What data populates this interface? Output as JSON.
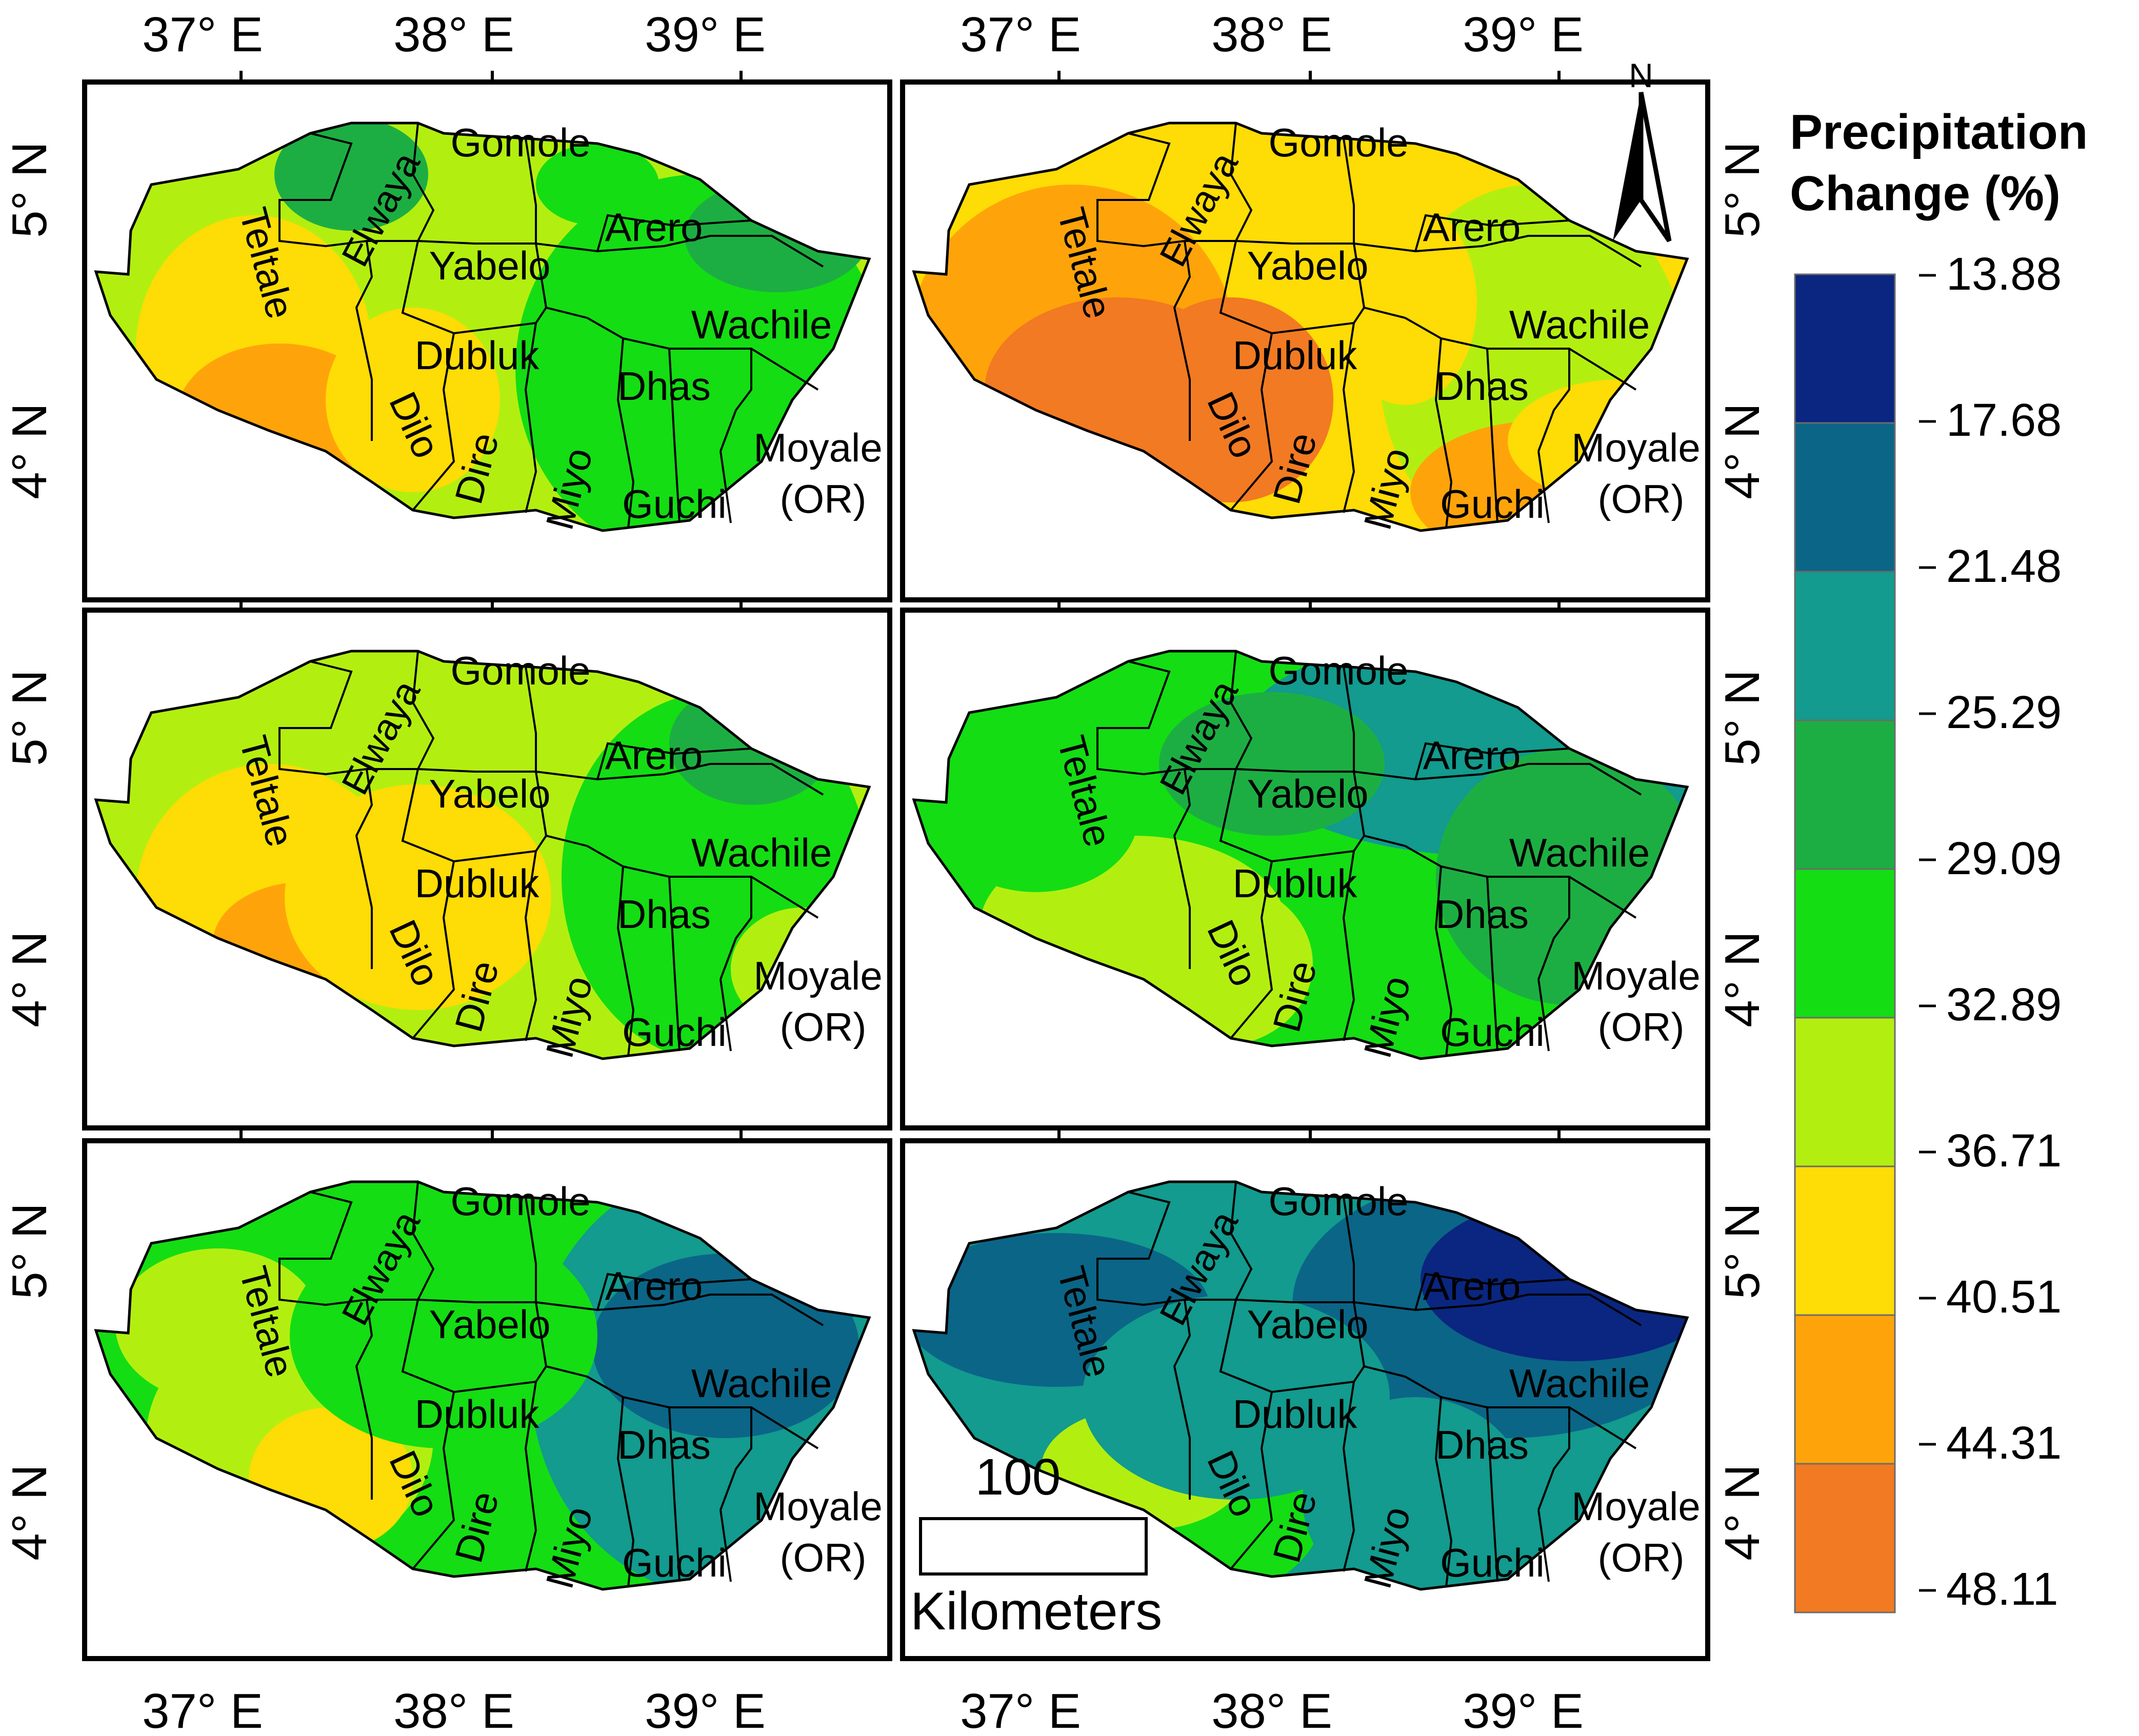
{
  "axis_labels": {
    "longitude": [
      "37° E",
      "38° E",
      "39° E"
    ],
    "latitude": [
      "5° N",
      "4° N"
    ]
  },
  "district_names": [
    "Gomole",
    "Elwaya",
    "Teltale",
    "Yabelo",
    "Arero",
    "Wachile",
    "Dubluk",
    "Dilo",
    "Dhas",
    "Dire",
    "Miyo",
    "Guchi",
    "Moyale",
    "(OR)"
  ],
  "north_arrow_label": "N",
  "scale_bar": {
    "value": "100",
    "unit": "Kilometers"
  },
  "legend": {
    "title_line1": "Precipitation",
    "title_line2": "Change (%)",
    "classes": [
      {
        "label": "13.88",
        "color": "#0a2680"
      },
      {
        "label": "17.68",
        "color": "#0b6587"
      },
      {
        "label": "21.48",
        "color": "#129b8e"
      },
      {
        "label": "25.29",
        "color": "#1dae43"
      },
      {
        "label": "29.09",
        "color": "#14dd14"
      },
      {
        "label": "32.89",
        "color": "#b2ef10"
      },
      {
        "label": "36.71",
        "color": "#fedc05"
      },
      {
        "label": "40.51",
        "color": "#fea40a"
      },
      {
        "label": "44.31",
        "color": "#f27a22"
      },
      {
        "label": "48.11",
        "color": ""
      }
    ]
  },
  "panels": [
    {
      "id": "top-left",
      "palette": [
        "#b2ef10",
        "#fedc05",
        "#fea40a",
        "#14dd14",
        "#1dae43"
      ]
    },
    {
      "id": "top-right",
      "palette": [
        "#fedc05",
        "#fea40a",
        "#f27a22",
        "#b2ef10",
        "#14dd14"
      ]
    },
    {
      "id": "middle-left",
      "palette": [
        "#b2ef10",
        "#fedc05",
        "#fea40a",
        "#14dd14",
        "#1dae43"
      ]
    },
    {
      "id": "middle-right",
      "palette": [
        "#1dae43",
        "#14dd14",
        "#b2ef10",
        "#129b8e",
        "#129b8e"
      ]
    },
    {
      "id": "bottom-left",
      "palette": [
        "#14dd14",
        "#b2ef10",
        "#fedc05",
        "#129b8e",
        "#0b6587"
      ]
    },
    {
      "id": "bottom-right",
      "palette": [
        "#129b8e",
        "#0b6587",
        "#0a2680",
        "#14dd14",
        "#b2ef10"
      ]
    }
  ]
}
